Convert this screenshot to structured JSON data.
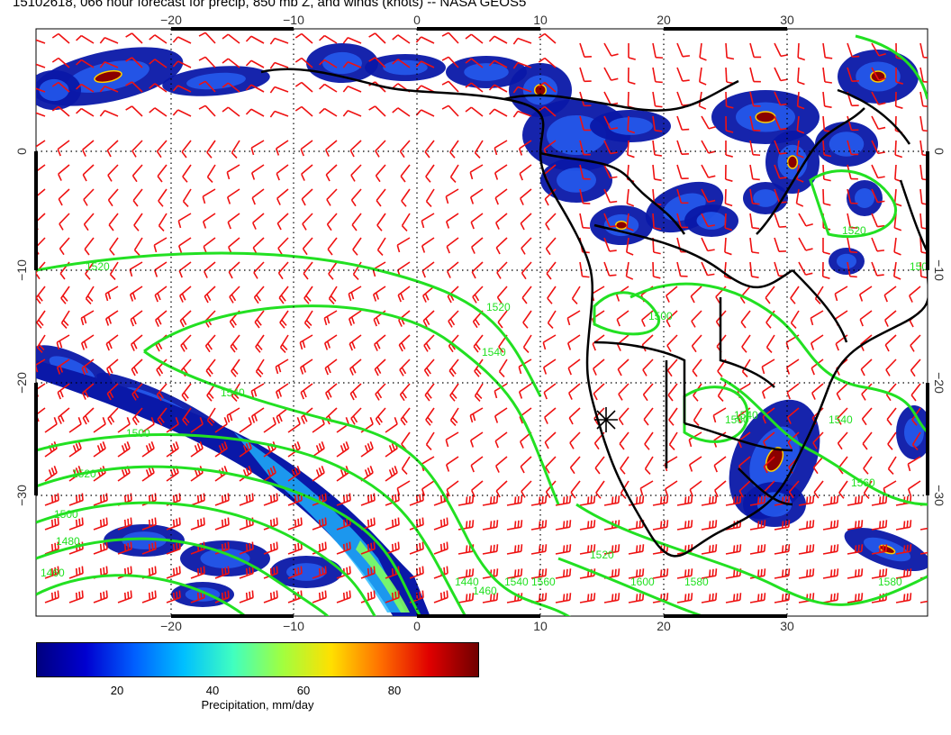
{
  "title": "15102618, 066 hour forecast for precip, 850 mb Z, and winds (knots) -- NASA GEOS5",
  "map": {
    "lon_ticks": [
      "−20",
      "−10",
      "0",
      "10",
      "20",
      "30"
    ],
    "lat_ticks": [
      "0",
      "−10",
      "−20",
      "−30"
    ],
    "contour_labels": [
      "1520",
      "1520",
      "1540",
      "1540",
      "1500",
      "1520",
      "1500",
      "1480",
      "1460",
      "1440",
      "1460",
      "1540",
      "1560",
      "1520",
      "1500",
      "1540",
      "1560",
      "1580",
      "1600",
      "1580",
      "1560",
      "1540",
      "1520",
      "1500"
    ],
    "colors": {
      "contour": "#22e022",
      "wind_barb": "#ee1111",
      "coastline": "#000000",
      "grid": "#000000"
    }
  },
  "colorbar": {
    "title": "Precipitation, mm/day",
    "tick_labels": [
      "20",
      "40",
      "60",
      "80"
    ],
    "colors": [
      "#000080",
      "#0000d0",
      "#0060ff",
      "#00c0ff",
      "#40ffc0",
      "#a0ff40",
      "#ffe000",
      "#ff7000",
      "#e00000",
      "#700000"
    ]
  }
}
